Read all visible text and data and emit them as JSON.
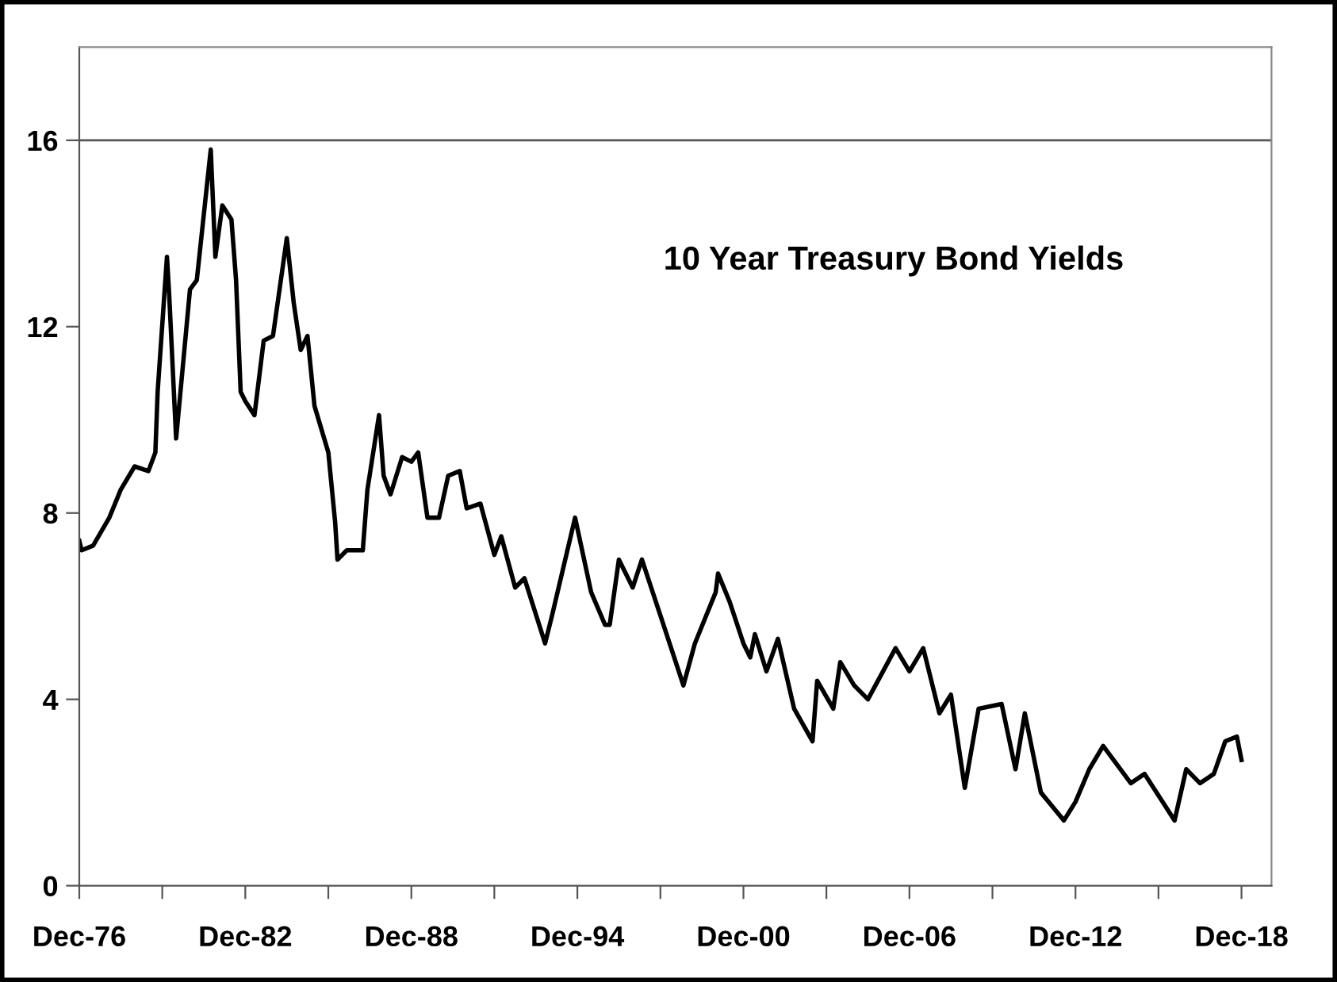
{
  "chart_data": {
    "type": "line",
    "title": "10 Year Treasury Bond Yields",
    "x": [
      "1976-12",
      "1977-01",
      "1977-06",
      "1978-01",
      "1978-06",
      "1978-12",
      "1979-06",
      "1979-09",
      "1979-10",
      "1980-02",
      "1980-03",
      "1980-06",
      "1980-12",
      "1981-03",
      "1981-09",
      "1981-11",
      "1982-02",
      "1982-06",
      "1982-08",
      "1982-10",
      "1982-12",
      "1983-04",
      "1983-08",
      "1983-12",
      "1984-06",
      "1984-09",
      "1984-12",
      "1985-03",
      "1985-06",
      "1985-12",
      "1986-03",
      "1986-04",
      "1986-08",
      "1986-12",
      "1987-03",
      "1987-05",
      "1987-10",
      "1987-12",
      "1988-03",
      "1988-08",
      "1988-12",
      "1989-03",
      "1989-07",
      "1989-12",
      "1990-04",
      "1990-09",
      "1990-12",
      "1991-06",
      "1991-12",
      "1992-03",
      "1992-09",
      "1993-01",
      "1993-10",
      "1994-01",
      "1994-11",
      "1995-06",
      "1995-12",
      "1996-02",
      "1996-06",
      "1996-12",
      "1997-04",
      "1997-12",
      "1998-10",
      "1999-03",
      "1999-12",
      "2000-01",
      "2000-06",
      "2000-12",
      "2001-03",
      "2001-05",
      "2001-10",
      "2002-03",
      "2002-10",
      "2003-06",
      "2003-08",
      "2004-03",
      "2004-06",
      "2004-12",
      "2005-06",
      "2006-06",
      "2006-12",
      "2007-06",
      "2008-01",
      "2008-06",
      "2008-12",
      "2009-06",
      "2010-04",
      "2010-10",
      "2011-02",
      "2011-09",
      "2012-07",
      "2012-12",
      "2013-06",
      "2013-12",
      "2014-12",
      "2015-06",
      "2016-07",
      "2016-12",
      "2017-06",
      "2017-12",
      "2018-05",
      "2018-10",
      "2018-12"
    ],
    "series": [
      {
        "color": "#000000",
        "values": [
          7.4,
          7.2,
          7.3,
          7.9,
          8.5,
          9.0,
          8.9,
          9.3,
          10.6,
          13.5,
          12.7,
          9.6,
          12.8,
          13.0,
          15.8,
          13.5,
          14.6,
          14.3,
          13.0,
          10.6,
          10.4,
          10.1,
          11.7,
          11.8,
          13.9,
          12.5,
          11.5,
          11.8,
          10.3,
          9.3,
          7.8,
          7.0,
          7.2,
          7.2,
          7.2,
          8.5,
          10.1,
          8.8,
          8.4,
          9.2,
          9.1,
          9.3,
          7.9,
          7.9,
          8.8,
          8.9,
          8.1,
          8.2,
          7.1,
          7.5,
          6.4,
          6.6,
          5.2,
          5.8,
          7.9,
          6.3,
          5.6,
          5.6,
          7.0,
          6.4,
          7.0,
          5.8,
          4.3,
          5.2,
          6.3,
          6.7,
          6.1,
          5.2,
          4.9,
          5.4,
          4.6,
          5.3,
          3.8,
          3.1,
          4.4,
          3.8,
          4.8,
          4.3,
          4.0,
          5.1,
          4.6,
          5.1,
          3.7,
          4.1,
          2.1,
          3.8,
          3.9,
          2.5,
          3.7,
          2.0,
          1.4,
          1.8,
          2.5,
          3.0,
          2.2,
          2.4,
          1.4,
          2.5,
          2.2,
          2.4,
          3.1,
          3.2,
          2.7
        ]
      }
    ],
    "xlim": [
      "1976-12",
      "2020-01"
    ],
    "xticks": [
      {
        "value": "1976-12",
        "label": "Dec-76"
      },
      {
        "value": "1979-12",
        "label": null
      },
      {
        "value": "1982-12",
        "label": "Dec-82"
      },
      {
        "value": "1985-12",
        "label": null
      },
      {
        "value": "1988-12",
        "label": "Dec-88"
      },
      {
        "value": "1991-12",
        "label": null
      },
      {
        "value": "1994-12",
        "label": "Dec-94"
      },
      {
        "value": "1997-12",
        "label": null
      },
      {
        "value": "2000-12",
        "label": "Dec-00"
      },
      {
        "value": "2003-12",
        "label": null
      },
      {
        "value": "2006-12",
        "label": "Dec-06"
      },
      {
        "value": "2009-12",
        "label": null
      },
      {
        "value": "2012-12",
        "label": "Dec-12"
      },
      {
        "value": "2015-12",
        "label": null
      },
      {
        "value": "2018-12",
        "label": "Dec-18"
      }
    ],
    "ylim": [
      0,
      18
    ],
    "yticks": [
      0,
      4,
      8,
      12,
      16
    ],
    "ref_lines": [
      {
        "axis": "y",
        "value": 16,
        "color": "#555555"
      }
    ],
    "grid": false,
    "legend": false,
    "marker": "none",
    "line_style": "solid"
  }
}
